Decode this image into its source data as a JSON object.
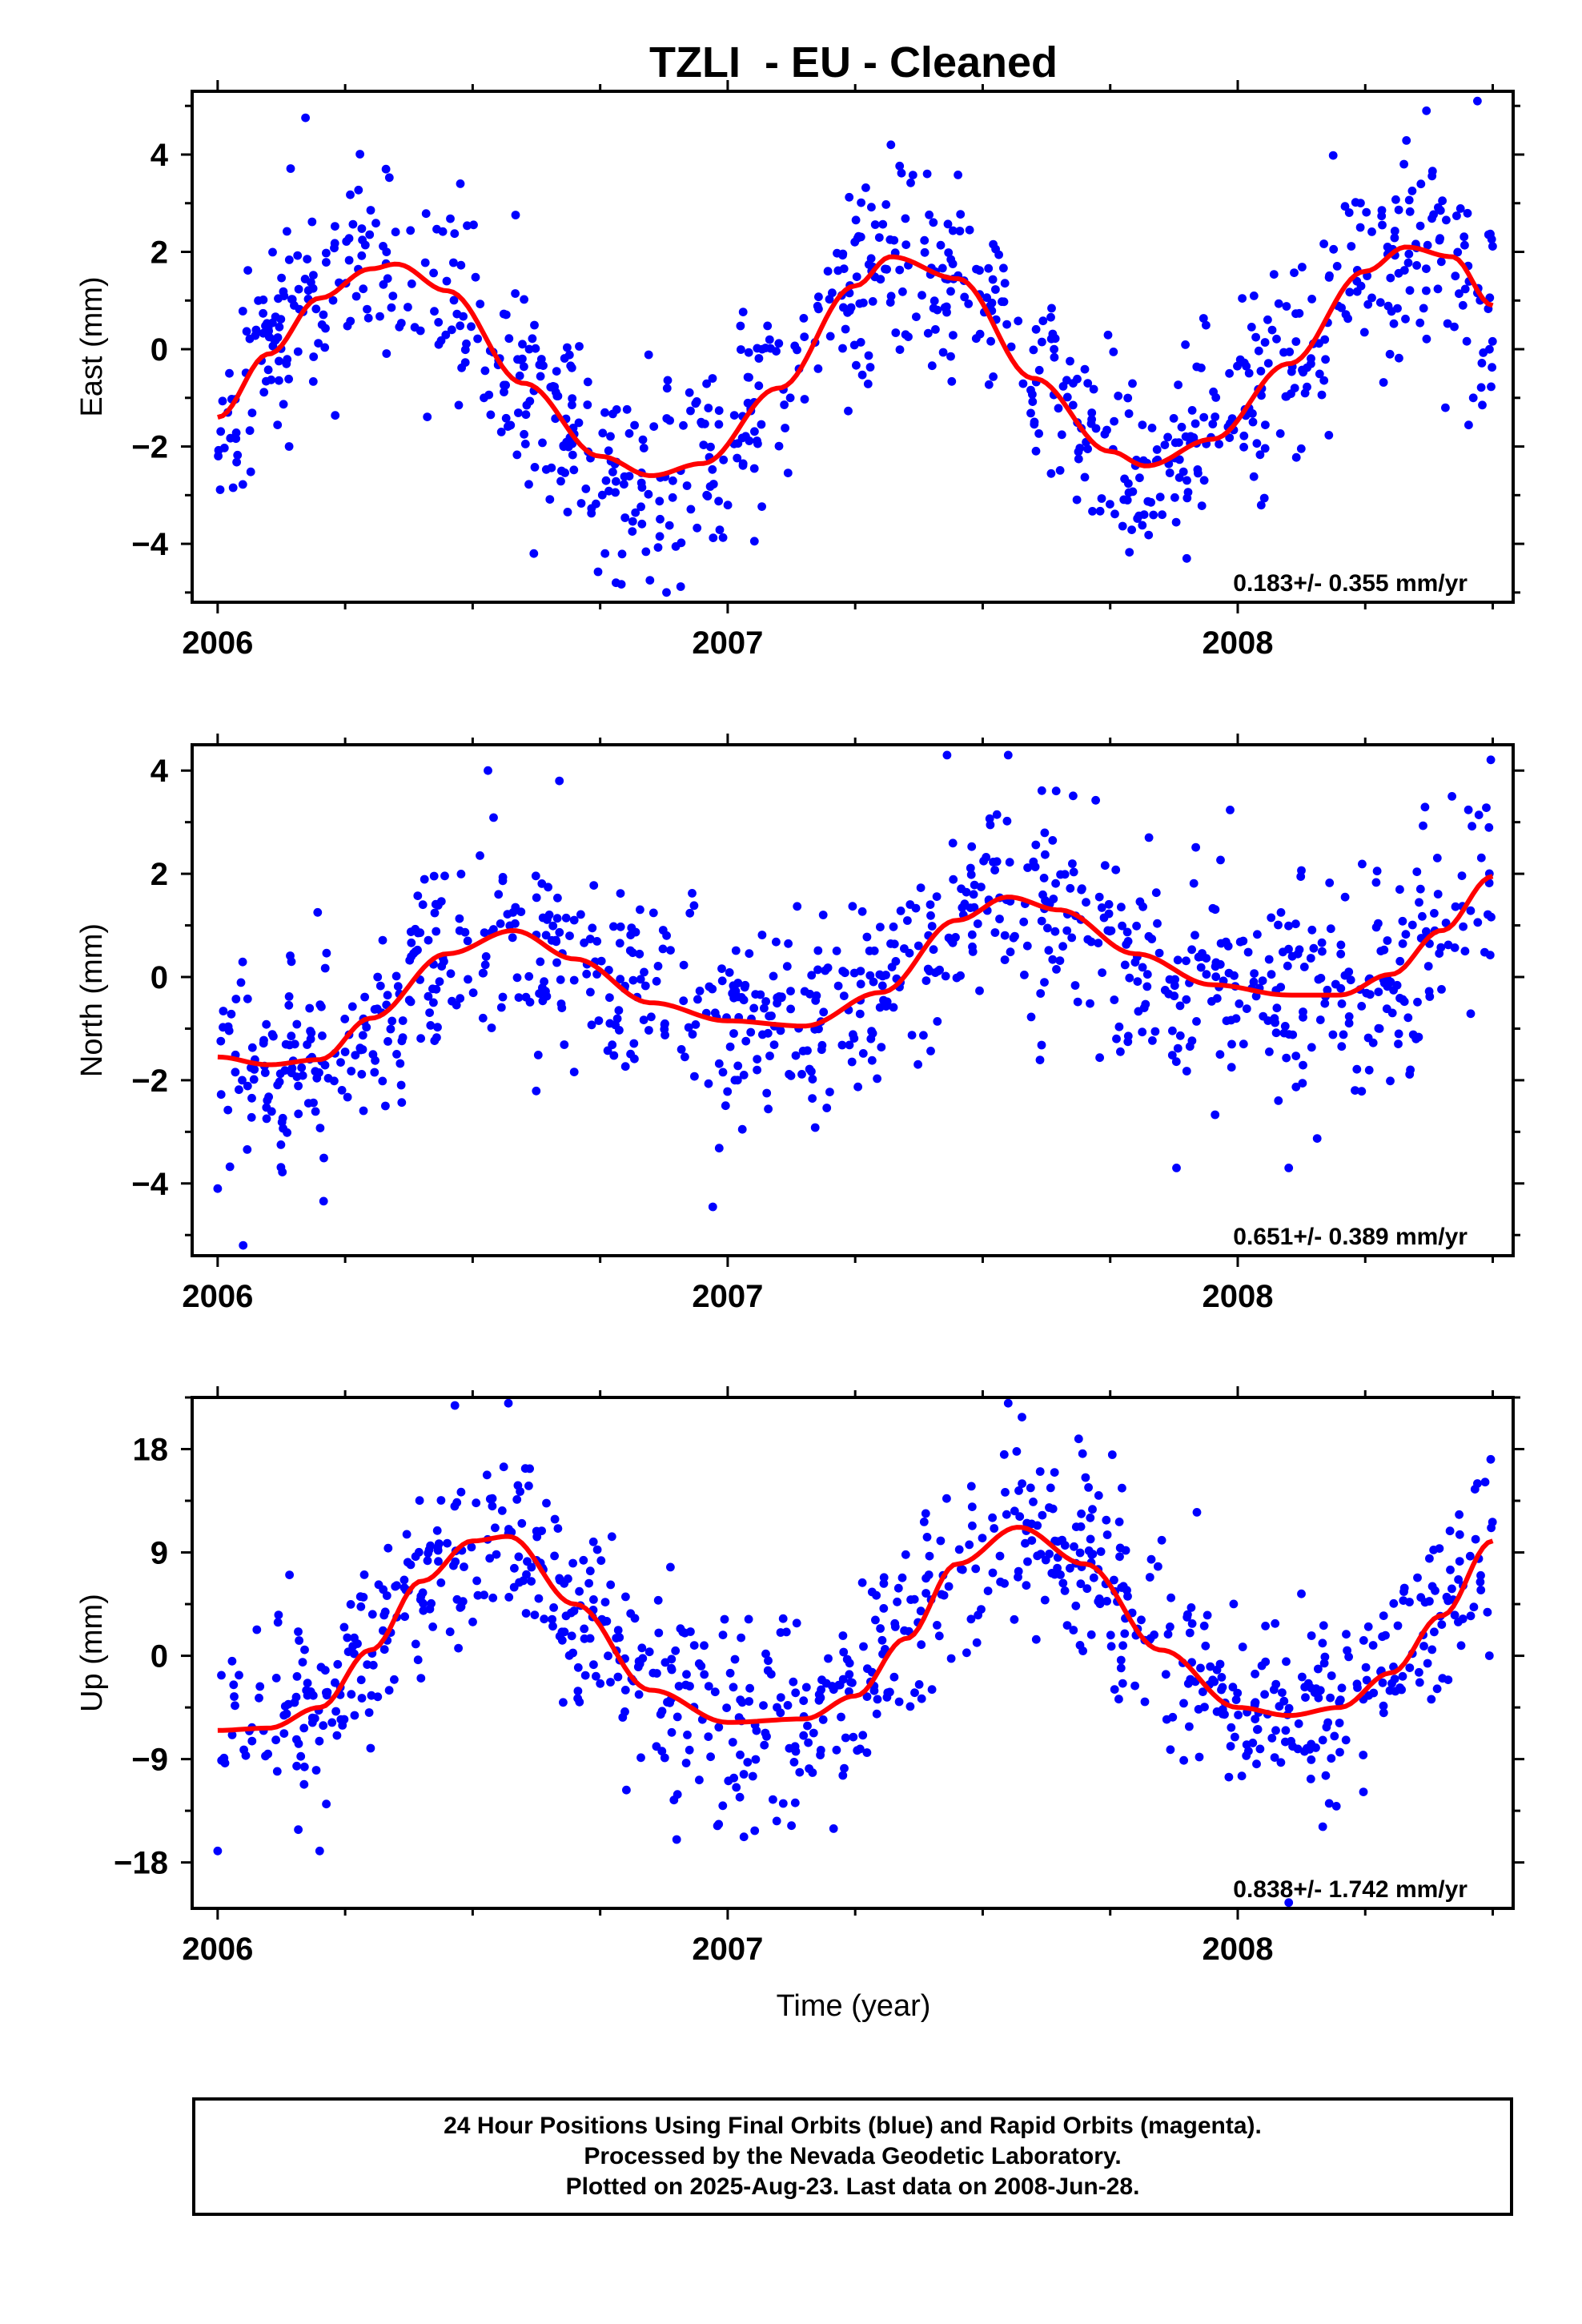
{
  "page": {
    "title": "TZLI  - EU - Cleaned",
    "xlabel": "Time (year)",
    "footer_lines": [
      "24 Hour Positions Using Final Orbits (blue) and Rapid Orbits (magenta).",
      "Processed by the Nevada Geodetic Laboratory.",
      "Plotted on 2025-Aug-23. Last data on 2008-Jun-28."
    ]
  },
  "colors": {
    "points": "#0000ff",
    "fit": "#ff0000",
    "axes": "#000000"
  },
  "chart_data": [
    {
      "type": "scatter",
      "title": "TZLI  - EU - Cleaned",
      "ylabel": "East (mm)",
      "xlabel": "",
      "xlim": [
        2005.95,
        2008.54
      ],
      "ylim": [
        -5.2,
        5.3
      ],
      "x_ticks": [
        2006,
        2007,
        2008
      ],
      "x_tick_labels": [
        "2006",
        "2007",
        "2008"
      ],
      "y_ticks": [
        -4,
        -2,
        0,
        2,
        4
      ],
      "y_tick_labels": [
        "−4",
        "−2",
        "0",
        "2",
        "4"
      ],
      "grid": false,
      "rate_label": "0.183+/- 0.355 mm/yr",
      "fit_curve": {
        "x": [
          2006.0,
          2006.1,
          2006.2,
          2006.3,
          2006.35,
          2006.45,
          2006.6,
          2006.75,
          2006.85,
          2006.95,
          2007.1,
          2007.25,
          2007.32,
          2007.45,
          2007.6,
          2007.75,
          2007.82,
          2007.95,
          2008.1,
          2008.25,
          2008.33,
          2008.42,
          2008.5
        ],
        "y": [
          -1.4,
          -0.1,
          1.05,
          1.65,
          1.75,
          1.2,
          -0.7,
          -2.2,
          -2.6,
          -2.35,
          -0.8,
          1.3,
          1.9,
          1.45,
          -0.6,
          -2.1,
          -2.4,
          -1.85,
          -0.3,
          1.6,
          2.1,
          1.9,
          0.9
        ]
      },
      "scatter_cloud": {
        "amplitude_mm": 1.1,
        "n": 870,
        "seed": 11
      },
      "points_sample": [
        {
          "x": 2006.02,
          "y": -1.3
        },
        {
          "x": 2006.15,
          "y": 0.9
        },
        {
          "x": 2006.33,
          "y": 3.7
        },
        {
          "x": 2006.62,
          "y": -4.2
        },
        {
          "x": 2006.88,
          "y": -5.0
        },
        {
          "x": 2007.32,
          "y": 4.2
        },
        {
          "x": 2007.9,
          "y": -4.3
        },
        {
          "x": 2008.37,
          "y": 4.9
        },
        {
          "x": 2008.47,
          "y": 5.1
        }
      ]
    },
    {
      "type": "scatter",
      "ylabel": "North (mm)",
      "xlabel": "",
      "xlim": [
        2005.95,
        2008.54
      ],
      "ylim": [
        -5.4,
        4.5
      ],
      "x_ticks": [
        2006,
        2007,
        2008
      ],
      "x_tick_labels": [
        "2006",
        "2007",
        "2008"
      ],
      "y_ticks": [
        -4,
        -2,
        0,
        2,
        4
      ],
      "y_tick_labels": [
        "−4",
        "−2",
        "0",
        "2",
        "4"
      ],
      "grid": false,
      "rate_label": "0.651+/- 0.389 mm/yr",
      "fit_curve": {
        "x": [
          2006.0,
          2006.1,
          2006.2,
          2006.3,
          2006.45,
          2006.58,
          2006.7,
          2006.85,
          2007.0,
          2007.15,
          2007.3,
          2007.45,
          2007.55,
          2007.65,
          2007.8,
          2007.95,
          2008.1,
          2008.2,
          2008.3,
          2008.4,
          2008.5
        ],
        "y": [
          -1.55,
          -1.7,
          -1.6,
          -0.8,
          0.45,
          0.9,
          0.35,
          -0.5,
          -0.85,
          -0.95,
          -0.3,
          1.1,
          1.55,
          1.3,
          0.45,
          -0.15,
          -0.35,
          -0.35,
          0.05,
          0.9,
          1.95
        ]
      },
      "scatter_cloud": {
        "amplitude_mm": 1.0,
        "n": 880,
        "seed": 23
      },
      "points_sample": [
        {
          "x": 2006.0,
          "y": -4.1
        },
        {
          "x": 2006.05,
          "y": -5.2
        },
        {
          "x": 2006.53,
          "y": 4.0
        },
        {
          "x": 2006.67,
          "y": 3.8
        },
        {
          "x": 2007.43,
          "y": 4.3
        },
        {
          "x": 2007.55,
          "y": 4.3
        },
        {
          "x": 2007.88,
          "y": -3.7
        },
        {
          "x": 2008.1,
          "y": -3.7
        },
        {
          "x": 2008.42,
          "y": 3.5
        }
      ]
    },
    {
      "type": "scatter",
      "ylabel": "Up (mm)",
      "xlabel": "Time (year)",
      "xlim": [
        2005.95,
        2008.54
      ],
      "ylim": [
        -22.0,
        22.5
      ],
      "x_ticks": [
        2006,
        2007,
        2008
      ],
      "x_tick_labels": [
        "2006",
        "2007",
        "2008"
      ],
      "y_ticks": [
        -18,
        -9,
        0,
        9,
        18
      ],
      "y_tick_labels": [
        "−18",
        "−9",
        "0",
        "9",
        "18"
      ],
      "grid": false,
      "rate_label": "0.838+/- 1.742 mm/yr",
      "fit_curve": {
        "x": [
          2006.0,
          2006.1,
          2006.2,
          2006.3,
          2006.4,
          2006.5,
          2006.57,
          2006.7,
          2006.85,
          2007.0,
          2007.15,
          2007.25,
          2007.35,
          2007.45,
          2007.57,
          2007.7,
          2007.85,
          2008.0,
          2008.1,
          2008.2,
          2008.3,
          2008.4,
          2008.5
        ],
        "y": [
          -6.5,
          -6.3,
          -4.5,
          0.5,
          6.5,
          10.0,
          10.4,
          4.5,
          -3.0,
          -5.8,
          -5.5,
          -3.5,
          1.5,
          8.0,
          11.2,
          8.0,
          0.5,
          -4.5,
          -5.2,
          -4.5,
          -1.5,
          3.5,
          10.0
        ]
      },
      "scatter_cloud": {
        "amplitude_mm": 4.2,
        "n": 860,
        "seed": 37
      },
      "points_sample": [
        {
          "x": 2006.0,
          "y": -17.0
        },
        {
          "x": 2006.2,
          "y": -17.0
        },
        {
          "x": 2006.57,
          "y": 22.0
        },
        {
          "x": 2006.9,
          "y": -16.0
        },
        {
          "x": 2007.55,
          "y": 22.0
        },
        {
          "x": 2007.92,
          "y": 12.5
        },
        {
          "x": 2008.1,
          "y": -21.5
        },
        {
          "x": 2008.47,
          "y": 15.0
        }
      ]
    }
  ]
}
